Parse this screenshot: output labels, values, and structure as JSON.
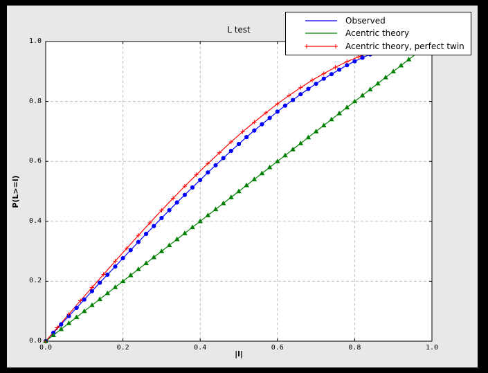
{
  "window": {
    "frame_color": "#000000",
    "figure_background": "#e8e8e8",
    "plot_background": "#ffffff",
    "grid_color": "#bfbfbf"
  },
  "chart_data": {
    "type": "line",
    "title": "L test",
    "xlabel": "|l|",
    "ylabel": "P(L>=l)",
    "xlim": [
      0,
      1
    ],
    "ylim": [
      0,
      1
    ],
    "xtick_labels": [
      "0.0",
      "0.2",
      "0.4",
      "0.6",
      "0.8",
      "1.0"
    ],
    "ytick_labels": [
      "0.0",
      "0.2",
      "0.4",
      "0.6",
      "0.8",
      "1.0"
    ],
    "grid": true,
    "legend_position": "upper-right-overlapping-plot",
    "series": [
      {
        "name": "Observed",
        "color": "#0000ff",
        "marker": "circle",
        "legend_sample_markers": false,
        "x": [
          0.0,
          0.02,
          0.04,
          0.06,
          0.08,
          0.1,
          0.12,
          0.14,
          0.16,
          0.18,
          0.2,
          0.22,
          0.24,
          0.26,
          0.28,
          0.3,
          0.32,
          0.34,
          0.36,
          0.38,
          0.4,
          0.42,
          0.44,
          0.46,
          0.48,
          0.5,
          0.52,
          0.54,
          0.56,
          0.58,
          0.6,
          0.62,
          0.64,
          0.66,
          0.68,
          0.7,
          0.72,
          0.74,
          0.76,
          0.78,
          0.8,
          0.82,
          0.84,
          0.86
        ],
        "y": [
          0.0,
          0.028,
          0.056,
          0.084,
          0.111,
          0.139,
          0.167,
          0.195,
          0.222,
          0.249,
          0.277,
          0.304,
          0.331,
          0.358,
          0.384,
          0.411,
          0.437,
          0.463,
          0.488,
          0.513,
          0.538,
          0.563,
          0.587,
          0.611,
          0.635,
          0.658,
          0.681,
          0.703,
          0.724,
          0.745,
          0.766,
          0.786,
          0.805,
          0.824,
          0.842,
          0.859,
          0.876,
          0.891,
          0.906,
          0.921,
          0.934,
          0.946,
          0.957,
          0.968
        ]
      },
      {
        "name": "Acentric theory",
        "color": "#008000",
        "marker": "triangle-up",
        "legend_sample_markers": false,
        "x": [
          0.0,
          0.02,
          0.04,
          0.06,
          0.08,
          0.1,
          0.12,
          0.14,
          0.16,
          0.18,
          0.2,
          0.22,
          0.24,
          0.26,
          0.28,
          0.3,
          0.32,
          0.34,
          0.36,
          0.38,
          0.4,
          0.42,
          0.44,
          0.46,
          0.48,
          0.5,
          0.52,
          0.54,
          0.56,
          0.58,
          0.6,
          0.62,
          0.64,
          0.66,
          0.68,
          0.7,
          0.72,
          0.74,
          0.76,
          0.78,
          0.8,
          0.82,
          0.84,
          0.86,
          0.88,
          0.9,
          0.92,
          0.94,
          0.96,
          0.98
        ],
        "y": [
          0.0,
          0.02,
          0.04,
          0.06,
          0.08,
          0.1,
          0.12,
          0.14,
          0.16,
          0.18,
          0.2,
          0.22,
          0.24,
          0.26,
          0.28,
          0.3,
          0.32,
          0.34,
          0.36,
          0.38,
          0.4,
          0.42,
          0.44,
          0.46,
          0.48,
          0.5,
          0.52,
          0.54,
          0.56,
          0.58,
          0.6,
          0.62,
          0.64,
          0.66,
          0.68,
          0.7,
          0.72,
          0.74,
          0.76,
          0.78,
          0.8,
          0.82,
          0.84,
          0.86,
          0.88,
          0.9,
          0.92,
          0.94,
          0.96,
          0.98
        ]
      },
      {
        "name": "Acentric theory, perfect twin",
        "color": "#ff0000",
        "marker": "plus",
        "legend_sample_markers": true,
        "x": [
          0.0,
          0.03,
          0.06,
          0.09,
          0.12,
          0.15,
          0.18,
          0.21,
          0.24,
          0.27,
          0.3,
          0.33,
          0.36,
          0.39,
          0.42,
          0.45,
          0.48,
          0.51,
          0.54,
          0.57,
          0.6,
          0.63,
          0.66,
          0.69,
          0.72,
          0.75,
          0.78,
          0.81,
          0.84,
          0.87
        ],
        "y": [
          0.0,
          0.045,
          0.09,
          0.135,
          0.179,
          0.223,
          0.267,
          0.31,
          0.353,
          0.395,
          0.437,
          0.477,
          0.517,
          0.555,
          0.593,
          0.629,
          0.665,
          0.699,
          0.731,
          0.762,
          0.792,
          0.82,
          0.846,
          0.871,
          0.893,
          0.914,
          0.933,
          0.949,
          0.964,
          0.976
        ]
      }
    ]
  }
}
